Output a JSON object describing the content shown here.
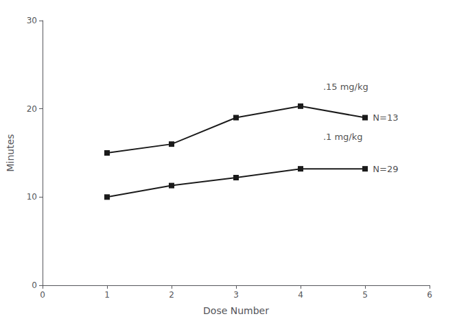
{
  "chart_data": {
    "type": "line",
    "xlabel": "Dose Number",
    "ylabel": "Minutes",
    "xlim": [
      0,
      6
    ],
    "ylim": [
      0,
      30
    ],
    "xticks": [
      0,
      1,
      2,
      3,
      4,
      5,
      6
    ],
    "yticks": [
      0,
      10,
      20,
      30
    ],
    "grid": false,
    "series": [
      {
        "x": [
          1,
          2,
          3,
          4,
          5
        ],
        "values": [
          15.0,
          16.0,
          19.0,
          20.3,
          19.0
        ],
        "color": "#1a1a1a",
        "marker": "square"
      },
      {
        "x": [
          1,
          2,
          3,
          4,
          5
        ],
        "values": [
          10.0,
          11.3,
          12.2,
          13.2,
          13.2
        ],
        "color": "#1a1a1a",
        "marker": "square"
      }
    ],
    "annotations": [
      {
        "text": ".15 mg/kg",
        "x": 4.35,
        "y": 22.5
      },
      {
        "text": "N=13",
        "x": 5.12,
        "y": 19.0
      },
      {
        "text": ".1 mg/kg",
        "x": 4.35,
        "y": 16.8
      },
      {
        "text": "N=29",
        "x": 5.12,
        "y": 13.2
      }
    ]
  }
}
